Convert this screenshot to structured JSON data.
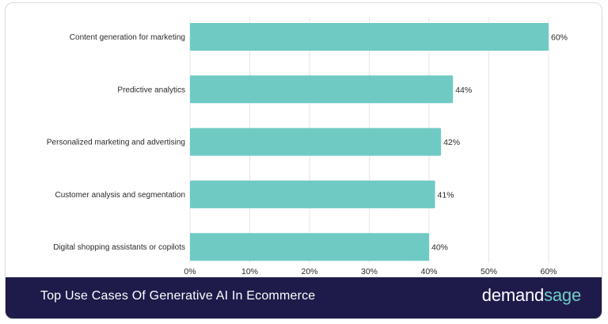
{
  "chart_data": {
    "type": "bar",
    "orientation": "horizontal",
    "title": "Top Use Cases Of Generative AI In Ecommerce",
    "categories": [
      "Content generation for marketing",
      "Predictive analytics",
      "Personalized marketing and advertising",
      "Customer analysis and segmentation",
      "Digital shopping assistants or copilots"
    ],
    "values": [
      60,
      44,
      42,
      41,
      40
    ],
    "value_labels": [
      "60%",
      "44%",
      "42%",
      "41%",
      "40%"
    ],
    "xticks": [
      0,
      10,
      20,
      30,
      40,
      50,
      60
    ],
    "xtick_labels": [
      "0%",
      "10%",
      "20%",
      "30%",
      "40%",
      "50%",
      "60%"
    ],
    "xlim": [
      0,
      60
    ],
    "grid": true,
    "bar_color": "#6fcac4"
  },
  "footer": {
    "title": "Top Use Cases Of Generative AI In Ecommerce",
    "brand_part1": "demand",
    "brand_part2": "sage"
  },
  "colors": {
    "footer_bg": "#1e1b4b",
    "brand_accent": "#6fcdc3"
  }
}
